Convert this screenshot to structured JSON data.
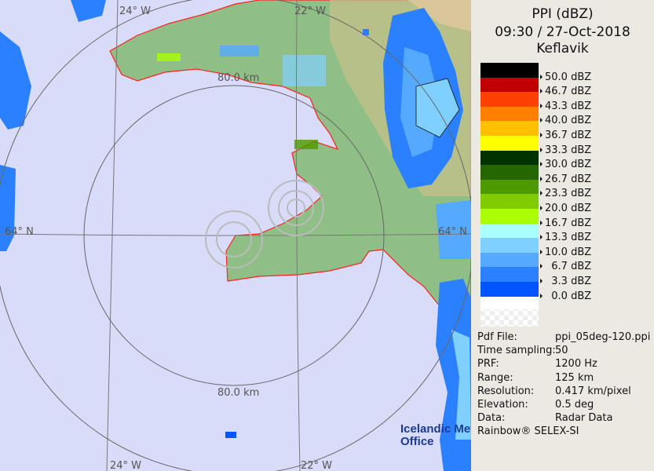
{
  "header": {
    "product": "PPI (dBZ)",
    "datetime": "09:30 / 27-Oct-2018",
    "site": "Keflavik"
  },
  "legend": [
    {
      "label": "50.0 dBZ",
      "color": "#000000"
    },
    {
      "label": "46.7 dBZ",
      "color": "#c00000"
    },
    {
      "label": "43.3 dBZ",
      "color": "#ff4000"
    },
    {
      "label": "40.0 dBZ",
      "color": "#ff8000"
    },
    {
      "label": "36.7 dBZ",
      "color": "#ffc000"
    },
    {
      "label": "33.3 dBZ",
      "color": "#ffff00"
    },
    {
      "label": "30.0 dBZ",
      "color": "#003300"
    },
    {
      "label": "26.7 dBZ",
      "color": "#266600"
    },
    {
      "label": "23.3 dBZ",
      "color": "#4c9900"
    },
    {
      "label": "20.0 dBZ",
      "color": "#80cc00"
    },
    {
      "label": "16.7 dBZ",
      "color": "#aaff00"
    },
    {
      "label": "13.3 dBZ",
      "color": "#aaffff"
    },
    {
      "label": "10.0 dBZ",
      "color": "#80d0ff"
    },
    {
      "label": "  6.7 dBZ",
      "color": "#55aaff"
    },
    {
      "label": "  3.3 dBZ",
      "color": "#2a80ff"
    },
    {
      "label": "  0.0 dBZ",
      "color": "#0055ff"
    }
  ],
  "info": [
    {
      "key": "Pdf File:",
      "value": "ppi_05deg-120.ppi"
    },
    {
      "key": "Time sampling:",
      "value": "50"
    },
    {
      "key": "PRF:",
      "value": "1200 Hz"
    },
    {
      "key": "Range:",
      "value": "125 km"
    },
    {
      "key": "Resolution:",
      "value": "0.417 km/pixel"
    },
    {
      "key": "Elevation:",
      "value": "0.5 deg"
    },
    {
      "key": "Data:",
      "value": "Radar Data"
    }
  ],
  "credit": "Rainbow® SELEX-SI",
  "map": {
    "labels": {
      "lon24_top": "24° W",
      "lon22_top": "22° W",
      "lon24_bottom": "24° W",
      "lon22_bottom": "22° W",
      "lat64_left": "64° N",
      "lat64_right": "64° N",
      "range_top": "80.0 km",
      "range_bottom": "80.0 km"
    },
    "logo": [
      "Icelandic Met",
      "Office"
    ],
    "colors": {
      "sea": "#d8dcf8",
      "land": "#8fbf86",
      "coast": "#ff2020",
      "grid": "#777777"
    }
  }
}
